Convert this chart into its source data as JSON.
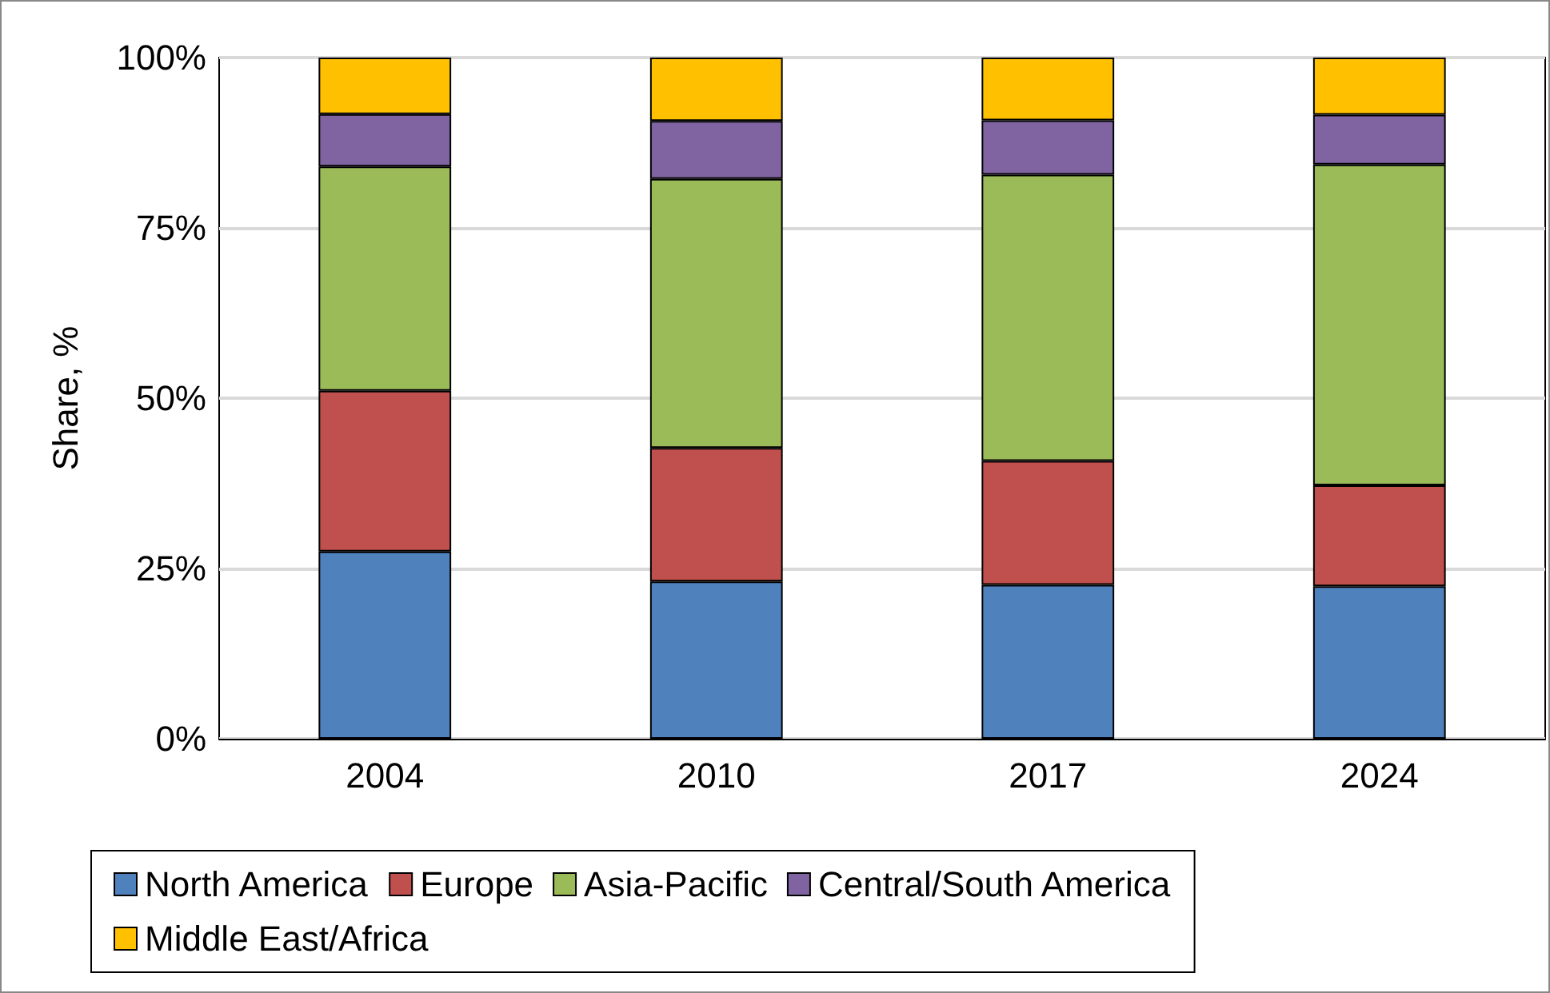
{
  "chart_data": {
    "type": "bar",
    "stacked": true,
    "ylabel": "Share, %",
    "categories": [
      "2004",
      "2010",
      "2017",
      "2024"
    ],
    "series": [
      {
        "name": "North America",
        "color": "#4f81bd",
        "values": [
          27.5,
          23.1,
          22.6,
          22.4
        ]
      },
      {
        "name": "Europe",
        "color": "#c0504d",
        "values": [
          23.6,
          19.6,
          18.2,
          14.8
        ]
      },
      {
        "name": "Asia-Pacific",
        "color": "#9bbb59",
        "values": [
          32.9,
          39.5,
          42.0,
          47.1
        ]
      },
      {
        "name": "Central/South America",
        "color": "#8064a2",
        "values": [
          7.7,
          8.5,
          8.0,
          7.3
        ]
      },
      {
        "name": "Middle East/Africa",
        "color": "#ffc000",
        "values": [
          8.3,
          9.3,
          9.2,
          8.4
        ]
      }
    ],
    "ylim": [
      0,
      100
    ],
    "yticks": [
      {
        "value": 0,
        "label": "0%"
      },
      {
        "value": 25,
        "label": "25%"
      },
      {
        "value": 50,
        "label": "50%"
      },
      {
        "value": 75,
        "label": "75%"
      },
      {
        "value": 100,
        "label": "100%"
      }
    ],
    "grid": "y",
    "legend": "bottom"
  }
}
